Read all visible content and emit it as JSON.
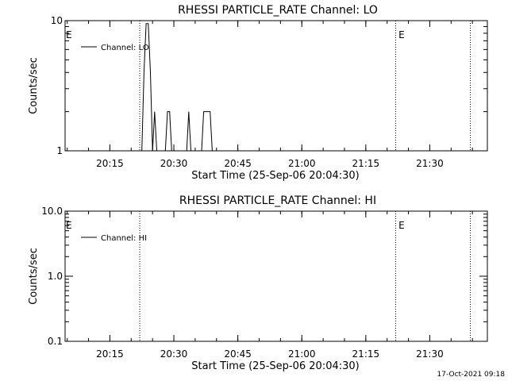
{
  "chart_data": [
    {
      "type": "line",
      "title": "RHESSI PARTICLE_RATE Channel: LO",
      "xlabel": "Start Time (25-Sep-06 20:04:30)",
      "ylabel": "Counts/sec",
      "yscale": "log",
      "ylim": [
        1,
        10
      ],
      "xlim": [
        "20:04:30",
        "21:43:30"
      ],
      "x_ticks": [
        "20:15",
        "20:30",
        "20:45",
        "21:00",
        "21:15",
        "21:30"
      ],
      "y_ticks": [
        "1",
        "10"
      ],
      "legend": {
        "label": "Channel: LO",
        "placement": "top-left"
      },
      "markers": [
        {
          "label": "E",
          "x": "20:04:30"
        },
        {
          "label": "E",
          "x": "21:22:30"
        }
      ],
      "vlines": [
        "20:22:00",
        "21:22:00",
        "21:39:30"
      ],
      "series": [
        {
          "name": "Channel: LO",
          "x": [
            "20:22:00",
            "20:22:30",
            "20:23:00",
            "20:23:30",
            "20:24:00",
            "20:24:30",
            "20:25:00",
            "20:25:30",
            "20:26:00",
            "20:26:30",
            "20:27:00",
            "20:27:30",
            "20:28:00",
            "20:28:30",
            "20:29:00",
            "20:29:30",
            "20:30:00",
            "20:30:30",
            "20:31:00",
            "20:31:30",
            "20:32:00",
            "20:32:30",
            "20:33:00",
            "20:33:30",
            "20:34:00",
            "20:34:30",
            "20:35:00",
            "20:35:30",
            "20:36:00",
            "20:36:30",
            "20:37:00",
            "20:37:30",
            "20:38:00",
            "20:38:30",
            "20:39:00",
            "20:39:30"
          ],
          "y": [
            1,
            1,
            4,
            9.5,
            9.5,
            4,
            1,
            2,
            1,
            1,
            1,
            1,
            1,
            2,
            2,
            1,
            1,
            1,
            1,
            1,
            1,
            1,
            1,
            2,
            1,
            1,
            1,
            1,
            1,
            1,
            2,
            2,
            2,
            2,
            1,
            1
          ]
        }
      ]
    },
    {
      "type": "line",
      "title": "RHESSI PARTICLE_RATE Channel: HI",
      "xlabel": "Start Time (25-Sep-06 20:04:30)",
      "ylabel": "Counts/sec",
      "yscale": "log",
      "ylim": [
        0.1,
        10
      ],
      "xlim": [
        "20:04:30",
        "21:43:30"
      ],
      "x_ticks": [
        "20:15",
        "20:30",
        "20:45",
        "21:00",
        "21:15",
        "21:30"
      ],
      "y_ticks": [
        "0.1",
        "1.0",
        "10.0"
      ],
      "legend": {
        "label": "Channel: HI",
        "placement": "top-left"
      },
      "markers": [
        {
          "label": "E",
          "x": "20:04:30"
        },
        {
          "label": "E",
          "x": "21:22:30"
        }
      ],
      "vlines": [
        "20:22:00",
        "21:22:00",
        "21:39:30"
      ],
      "series": [
        {
          "name": "Channel: HI",
          "x": [],
          "y": []
        }
      ]
    }
  ],
  "footer": {
    "timestamp": "17-Oct-2021 09:18"
  }
}
